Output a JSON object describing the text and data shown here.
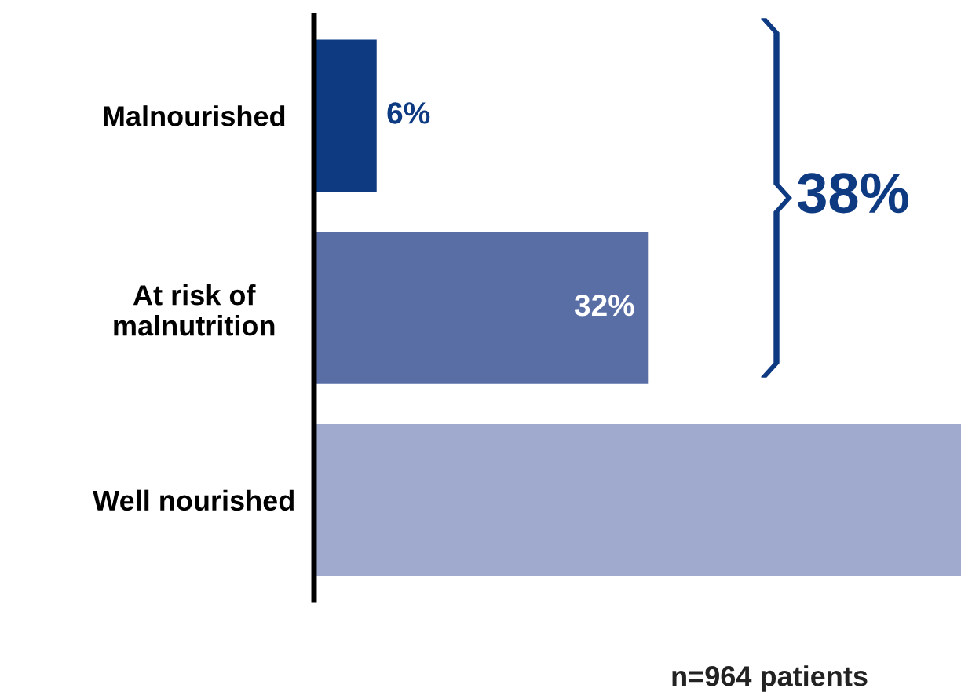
{
  "chart_data": {
    "type": "bar",
    "orientation": "horizontal",
    "categories": [
      "Malnourished",
      "At risk of\nmalnutrition",
      "Well nourished"
    ],
    "values": [
      6,
      32,
      62
    ],
    "colors": [
      "#0e3a82",
      "#5a6ea6",
      "#a0aacf"
    ],
    "value_labels": [
      "6%",
      "32%",
      null
    ],
    "xlim": [
      0,
      62
    ],
    "tick_labels": "y",
    "grid": false,
    "annotations": [
      "38%",
      "n=964 patients"
    ]
  }
}
